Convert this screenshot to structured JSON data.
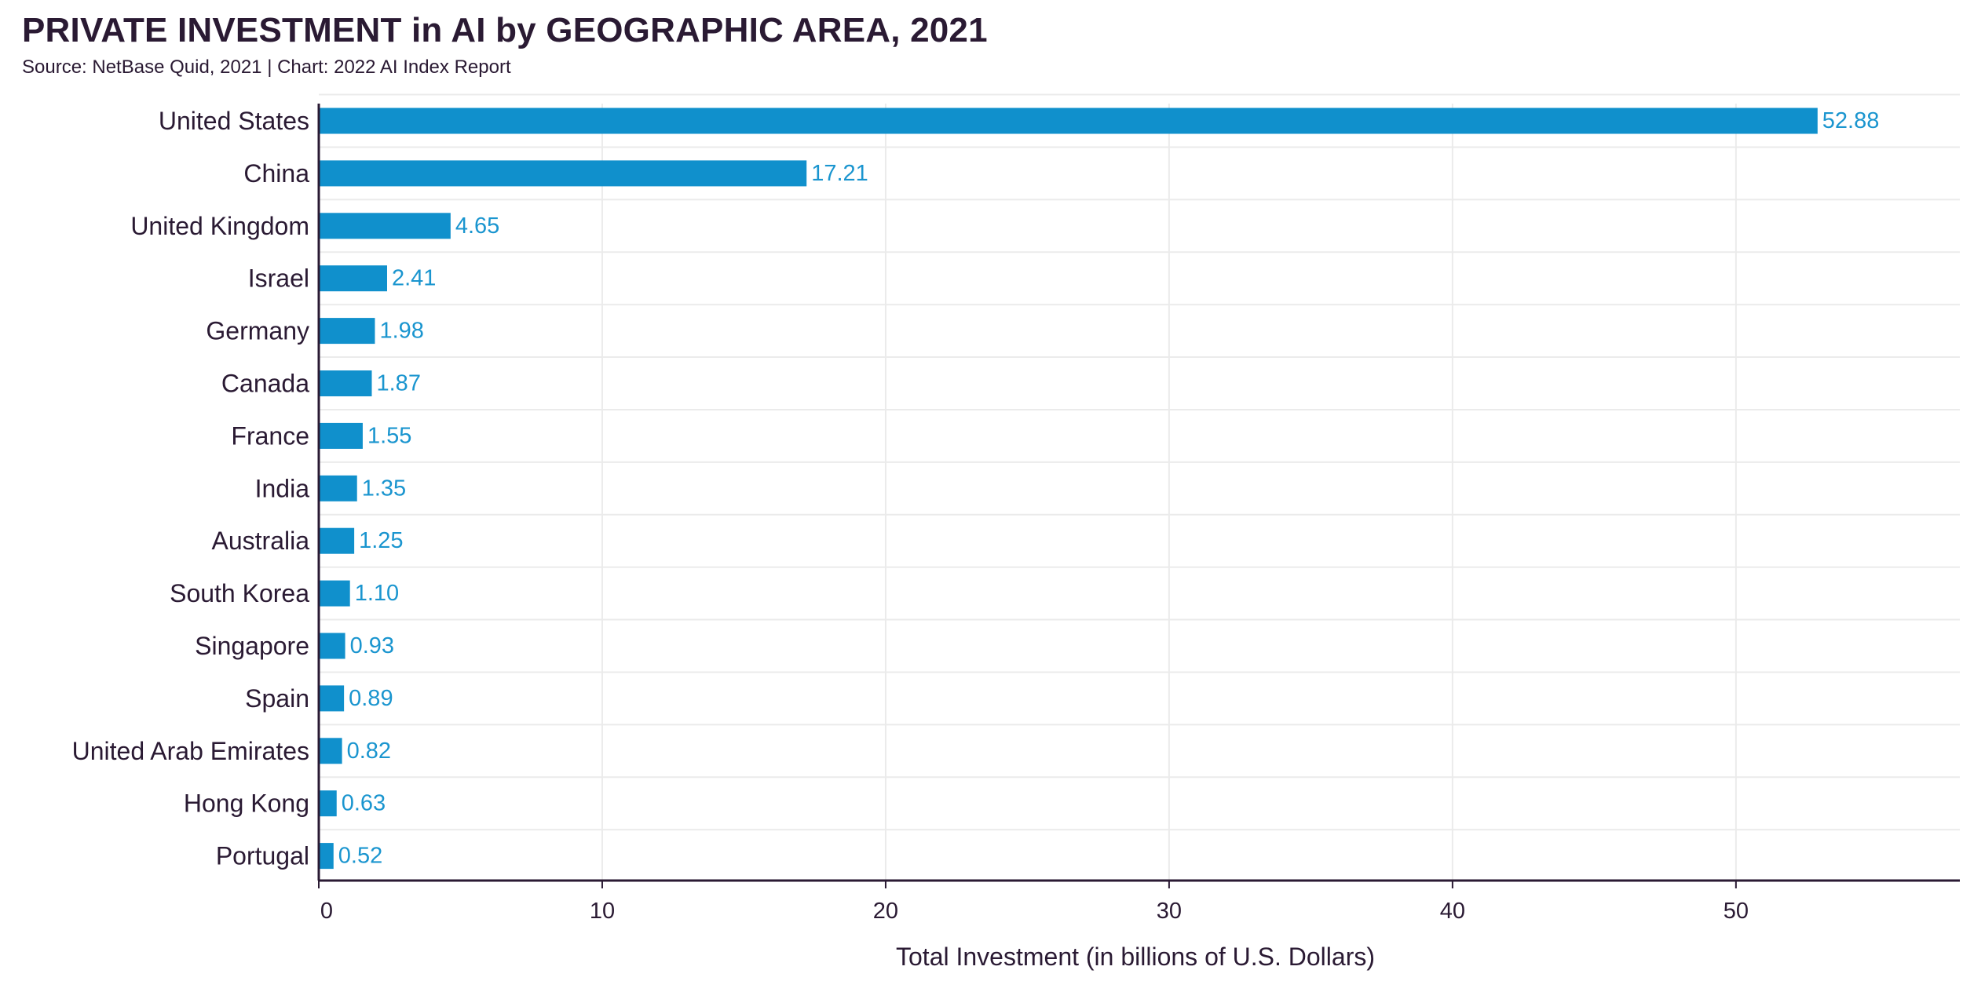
{
  "chart_data": {
    "type": "bar",
    "orientation": "horizontal",
    "title": "PRIVATE INVESTMENT in AI by GEOGRAPHIC AREA, 2021",
    "subtitle": "Source: NetBase Quid, 2021 | Chart: 2022 AI Index Report",
    "xlabel": "Total Investment (in billions of U.S. Dollars)",
    "ylabel": "",
    "xlim": [
      0,
      57.9
    ],
    "xticks": [
      0,
      10,
      20,
      30,
      40,
      50
    ],
    "grid": true,
    "categories": [
      "United States",
      "China",
      "United Kingdom",
      "Israel",
      "Germany",
      "Canada",
      "France",
      "India",
      "Australia",
      "South Korea",
      "Singapore",
      "Spain",
      "United Arab Emirates",
      "Hong Kong",
      "Portugal"
    ],
    "values": [
      52.88,
      17.21,
      4.65,
      2.41,
      1.98,
      1.87,
      1.55,
      1.35,
      1.25,
      1.1,
      0.93,
      0.89,
      0.82,
      0.63,
      0.52
    ],
    "value_labels": [
      "52.88",
      "17.21",
      "4.65",
      "2.41",
      "1.98",
      "1.87",
      "1.55",
      "1.35",
      "1.25",
      "1.10",
      "0.93",
      "0.89",
      "0.82",
      "0.63",
      "0.52"
    ],
    "bar_color": "#1090cc",
    "label_color": "#1a95cf",
    "axis_color": "#2a1a33",
    "grid_color": "#ebebeb"
  }
}
